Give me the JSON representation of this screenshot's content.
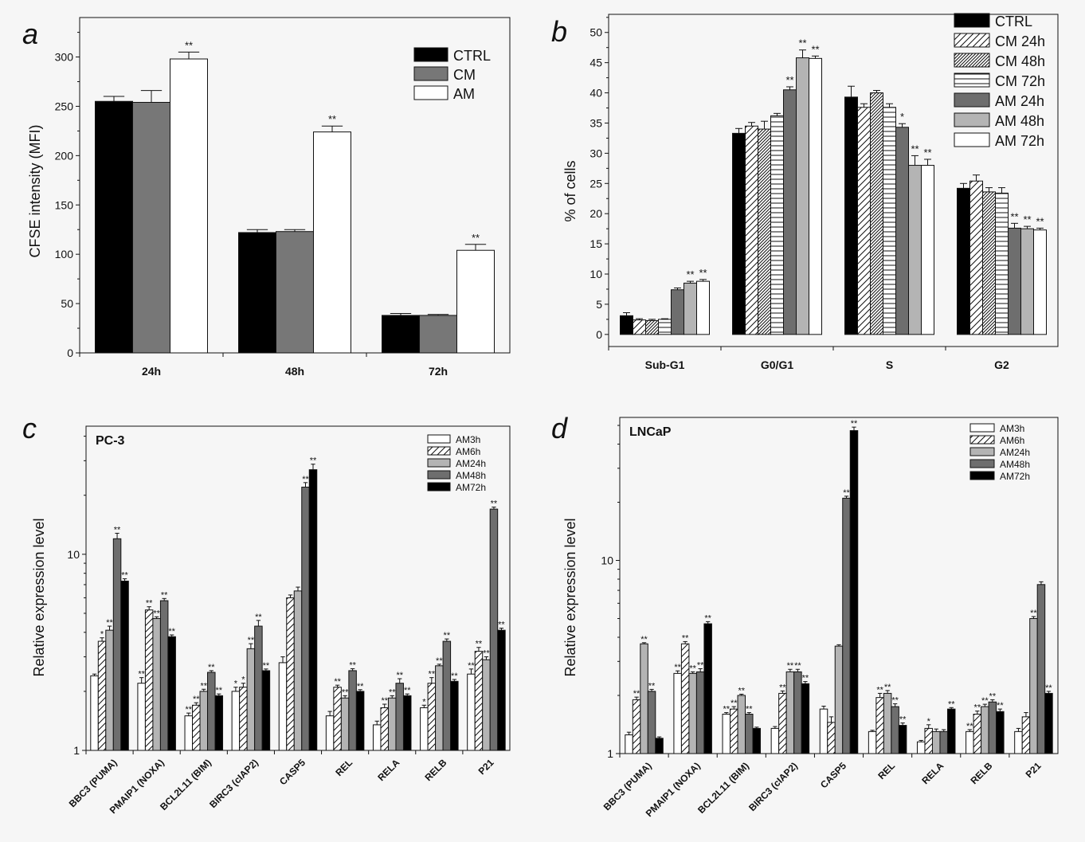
{
  "chart_data": [
    {
      "panel": "a",
      "type": "bar",
      "categories": [
        "24h",
        "48h",
        "72h"
      ],
      "ylabel": "CFSE intensity (MFI)",
      "ylim": [
        0,
        340
      ],
      "yticks": [
        0,
        50,
        100,
        150,
        200,
        250,
        300
      ],
      "legend_position": "top-right",
      "series": [
        {
          "name": "CTRL",
          "color": "#000000",
          "fill": "solid",
          "values": [
            255,
            122,
            38
          ],
          "errors": [
            5,
            3,
            2
          ],
          "sig": [
            "",
            "",
            ""
          ]
        },
        {
          "name": "CM",
          "color": "#777777",
          "fill": "solid",
          "values": [
            254,
            123,
            38
          ],
          "errors": [
            12,
            2,
            1
          ],
          "sig": [
            "",
            "",
            ""
          ]
        },
        {
          "name": "AM",
          "color": "#ffffff",
          "fill": "solid",
          "values": [
            298,
            224,
            104
          ],
          "errors": [
            7,
            6,
            6
          ],
          "sig": [
            "**",
            "**",
            "**"
          ]
        }
      ]
    },
    {
      "panel": "b",
      "type": "bar",
      "categories": [
        "Sub-G1",
        "G0/G1",
        "S",
        "G2"
      ],
      "ylabel": "% of cells",
      "ylim": [
        -2,
        53
      ],
      "yticks": [
        0,
        5,
        10,
        15,
        20,
        25,
        30,
        35,
        40,
        45,
        50
      ],
      "legend_position": "top-right",
      "series": [
        {
          "name": "CTRL",
          "color": "#000000",
          "fill": "solid",
          "values": [
            3.1,
            33.3,
            39.3,
            24.2
          ],
          "errors": [
            0.5,
            0.8,
            1.8,
            0.8
          ],
          "sig": [
            "",
            "",
            "",
            ""
          ]
        },
        {
          "name": "CM 24h",
          "color": "#ffffff",
          "fill": "diag",
          "values": [
            2.4,
            34.5,
            37.6,
            25.4
          ],
          "errors": [
            0.2,
            0.6,
            0.6,
            1.0
          ],
          "sig": [
            "",
            "",
            "",
            ""
          ]
        },
        {
          "name": "CM 48h",
          "color": "#ffffff",
          "fill": "diag-dense",
          "values": [
            2.3,
            34.0,
            40.0,
            23.6
          ],
          "errors": [
            0.2,
            1.3,
            0.4,
            0.7
          ],
          "sig": [
            "",
            "",
            "",
            ""
          ]
        },
        {
          "name": "CM 72h",
          "color": "#ffffff",
          "fill": "hlines",
          "values": [
            2.5,
            36.2,
            37.6,
            23.4
          ],
          "errors": [
            0.1,
            0.4,
            0.6,
            0.9
          ],
          "sig": [
            "",
            "",
            "",
            ""
          ]
        },
        {
          "name": "AM 24h",
          "color": "#6e6e6e",
          "fill": "solid",
          "values": [
            7.4,
            40.5,
            34.3,
            17.6
          ],
          "errors": [
            0.3,
            0.5,
            0.6,
            0.8
          ],
          "sig": [
            "",
            "**",
            "*",
            "**"
          ]
        },
        {
          "name": "AM 48h",
          "color": "#b4b4b4",
          "fill": "solid",
          "values": [
            8.5,
            45.8,
            28.0,
            17.5
          ],
          "errors": [
            0.3,
            1.3,
            1.6,
            0.4
          ],
          "sig": [
            "**",
            "**",
            "**",
            "**"
          ]
        },
        {
          "name": "AM 72h",
          "color": "#ffffff",
          "fill": "solid",
          "values": [
            8.8,
            45.7,
            28.0,
            17.3
          ],
          "errors": [
            0.3,
            0.4,
            1.0,
            0.3
          ],
          "sig": [
            "**",
            "**",
            "**",
            "**"
          ]
        }
      ]
    },
    {
      "panel": "c",
      "type": "bar",
      "title": "PC-3",
      "categories": [
        "BBC3 (PUMA)",
        "PMAIP1 (NOXA)",
        "BCL2L11 (BIM)",
        "BIRC3 (cIAP2)",
        "CASP5",
        "REL",
        "RELA",
        "RELB",
        "P21"
      ],
      "ylabel": "Relative expression level",
      "yscale": "log",
      "ylim": [
        1,
        45
      ],
      "yticks": [
        1,
        10
      ],
      "legend_position": "top-right",
      "series": [
        {
          "name": "AM3h",
          "color": "#ffffff",
          "fill": "solid",
          "values": [
            2.4,
            2.2,
            1.5,
            2.0,
            2.8,
            1.5,
            1.35,
            1.65,
            2.45
          ],
          "errors": [
            0.05,
            0.15,
            0.05,
            0.1,
            0.2,
            0.08,
            0.06,
            0.05,
            0.15
          ],
          "sig": [
            "",
            "**",
            "**",
            "*",
            "",
            "",
            "",
            "*",
            "**"
          ]
        },
        {
          "name": "AM6h",
          "color": "#ffffff",
          "fill": "diag",
          "values": [
            3.6,
            5.2,
            1.7,
            2.1,
            6.0,
            2.1,
            1.65,
            2.2,
            3.2
          ],
          "errors": [
            0.15,
            0.2,
            0.05,
            0.1,
            0.2,
            0.05,
            0.07,
            0.15,
            0.15
          ],
          "sig": [
            "*",
            "**",
            "**",
            "*",
            "",
            "**",
            "**",
            "**",
            "**"
          ]
        },
        {
          "name": "AM24h",
          "color": "#b4b4b4",
          "fill": "solid",
          "values": [
            4.1,
            4.7,
            2.0,
            3.3,
            6.5,
            1.85,
            1.85,
            2.7,
            2.9
          ],
          "errors": [
            0.2,
            0.1,
            0.05,
            0.2,
            0.3,
            0.05,
            0.05,
            0.05,
            0.1
          ],
          "sig": [
            "**",
            "**",
            "**",
            "**",
            "",
            "**",
            "**",
            "**",
            "**"
          ]
        },
        {
          "name": "AM48h",
          "color": "#6e6e6e",
          "fill": "solid",
          "values": [
            12.0,
            5.8,
            2.5,
            4.3,
            22.0,
            2.55,
            2.2,
            3.6,
            17.0
          ],
          "errors": [
            0.8,
            0.15,
            0.05,
            0.3,
            1.2,
            0.06,
            0.12,
            0.1,
            0.4
          ],
          "sig": [
            "**",
            "**",
            "**",
            "**",
            "**",
            "**",
            "**",
            "**",
            "**"
          ]
        },
        {
          "name": "AM72h",
          "color": "#000000",
          "fill": "solid",
          "values": [
            7.3,
            3.8,
            1.9,
            2.55,
            27.0,
            2.0,
            1.9,
            2.25,
            4.1
          ],
          "errors": [
            0.2,
            0.08,
            0.04,
            0.05,
            1.8,
            0.04,
            0.04,
            0.05,
            0.1
          ],
          "sig": [
            "**",
            "**",
            "**",
            "**",
            "**",
            "**",
            "**",
            "**",
            "**"
          ]
        }
      ]
    },
    {
      "panel": "d",
      "type": "bar",
      "title": "LNCaP",
      "categories": [
        "BBC3 (PUMA)",
        "PMAIP1 (NOXA)",
        "BCL2L11 (BIM)",
        "BIRC3 (cIAP2)",
        "CASP5",
        "REL",
        "RELA",
        "RELB",
        "P21"
      ],
      "ylabel": "Relative expression level",
      "yscale": "log",
      "ylim": [
        1,
        55
      ],
      "yticks": [
        1,
        10
      ],
      "legend_position": "top-right",
      "series": [
        {
          "name": "AM3h",
          "color": "#ffffff",
          "fill": "solid",
          "values": [
            1.25,
            2.6,
            1.6,
            1.35,
            1.7,
            1.3,
            1.15,
            1.3,
            1.3
          ],
          "errors": [
            0.04,
            0.08,
            0.03,
            0.03,
            0.06,
            0.02,
            0.02,
            0.03,
            0.05
          ],
          "sig": [
            "",
            "**",
            "**",
            "",
            "",
            "",
            "",
            "**",
            ""
          ]
        },
        {
          "name": "AM6h",
          "color": "#ffffff",
          "fill": "diag",
          "values": [
            1.9,
            3.7,
            1.7,
            2.05,
            1.45,
            1.95,
            1.35,
            1.6,
            1.55
          ],
          "errors": [
            0.06,
            0.1,
            0.05,
            0.06,
            0.1,
            0.1,
            0.06,
            0.06,
            0.08
          ],
          "sig": [
            "**",
            "**",
            "**",
            "**",
            "",
            "**",
            "*",
            "**",
            ""
          ]
        },
        {
          "name": "AM24h",
          "color": "#b4b4b4",
          "fill": "solid",
          "values": [
            3.7,
            2.6,
            2.0,
            2.65,
            3.6,
            2.05,
            1.3,
            1.75,
            5.0
          ],
          "errors": [
            0.05,
            0.05,
            0.03,
            0.08,
            0.06,
            0.07,
            0.04,
            0.05,
            0.12
          ],
          "sig": [
            "**",
            "**",
            "**",
            "**",
            "",
            "**",
            "",
            "**",
            "**"
          ]
        },
        {
          "name": "AM48h",
          "color": "#6e6e6e",
          "fill": "solid",
          "values": [
            2.1,
            2.65,
            1.6,
            2.65,
            21.0,
            1.75,
            1.3,
            1.85,
            7.5
          ],
          "errors": [
            0.05,
            0.1,
            0.03,
            0.08,
            0.5,
            0.06,
            0.03,
            0.05,
            0.25
          ],
          "sig": [
            "**",
            "**",
            "**",
            "**",
            "**",
            "**",
            "",
            "**",
            ""
          ]
        },
        {
          "name": "AM72h",
          "color": "#000000",
          "fill": "solid",
          "values": [
            1.2,
            4.7,
            1.35,
            2.3,
            47.0,
            1.4,
            1.7,
            1.65,
            2.05
          ],
          "errors": [
            0.02,
            0.12,
            0.02,
            0.06,
            2.0,
            0.04,
            0.03,
            0.05,
            0.05
          ],
          "sig": [
            "",
            "**",
            "",
            "**",
            "**",
            "**",
            "**",
            "**",
            "**"
          ]
        }
      ]
    }
  ]
}
